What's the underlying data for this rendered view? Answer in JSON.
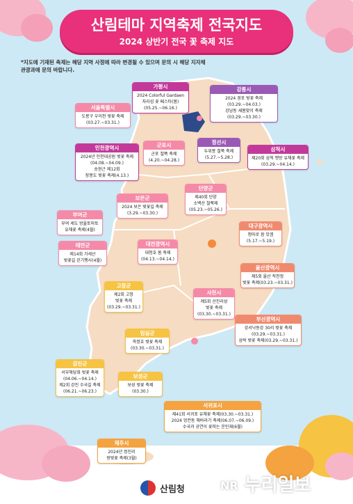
{
  "header": {
    "title": "산림테마 지역축제 전국지도",
    "subtitle": "2024 상반기 전국 꽃 축제 지도"
  },
  "note": "*지도에 기재된 축제는 해당 지역 사정에 따라 변경될 수 있으며 문의 시 해당 지자체 관광과에 문의 바랍니다.",
  "colors": {
    "title_bg": "#e8317a",
    "map_land": "#f6dcc2",
    "sea": "#cde9f5",
    "pink": "#f58aa8",
    "magenta": "#c2399a",
    "purple": "#9b59b6",
    "orange": "#f4a340",
    "coral": "#f08a6e",
    "yellow": "#f6c343"
  },
  "festivals": [
    {
      "region": "가평시",
      "lines": [
        "2024 Colorful Gardaen",
        "자라섬 꽃 페스타(봄)",
        "(05.25.~06.16.)"
      ]
    },
    {
      "region": "강릉시",
      "lines": [
        "2024 경포 벚꽃 축제",
        "(03.29.~04.03.)",
        "강남동 새봄맞이 축제",
        "(03.29.~03.30.)"
      ]
    },
    {
      "region": "서울특별시",
      "lines": [
        "도봉구 우이천 벚꽃 축제",
        "(03.27.~03.31.)"
      ]
    },
    {
      "region": "인천광역시",
      "lines": [
        "2024년 인천대공원 벚꽃 축제",
        "(04.08.~04.09.)",
        "송현근 제12회",
        "장봉도 벚꽃 축제(4.13.)"
      ]
    },
    {
      "region": "군포시",
      "lines": [
        "군포 철쭉 축제",
        "(4.20.~04.28.)"
      ]
    },
    {
      "region": "정선시",
      "lines": [
        "두위봉 철쭉 축제",
        "(5.27.~5.28.)"
      ]
    },
    {
      "region": "삼척시",
      "lines": [
        "제20회 삼척 맹방 유채꽃 축제",
        "(03.29.~04.14.)"
      ]
    },
    {
      "region": "단양군",
      "lines": [
        "제40회 단양",
        "소백산 철쭉제",
        "(05.23.~05.26.)"
      ]
    },
    {
      "region": "보은군",
      "lines": [
        "2024 보은 벚꽃길 축제",
        "(3.29.~03.30.)"
      ]
    },
    {
      "region": "부여군",
      "lines": [
        "부여 세도 방울토마토",
        "유채꽃 축제(4월)"
      ]
    },
    {
      "region": "대구광역시",
      "lines": [
        "청마로 팜 뮤엠",
        "(5.17.~5.19.)"
      ]
    },
    {
      "region": "태안군",
      "lines": [
        "제14회 가세산",
        "벚꽃길 걷기행사(4월)"
      ]
    },
    {
      "region": "대전광역시",
      "lines": [
        "대청호 봄 축제",
        "(04.13.~04.14.)"
      ]
    },
    {
      "region": "울산광역시",
      "lines": [
        "제5회 울산 작천정",
        "벚꽃 축제(03.23.~03.31.)"
      ]
    },
    {
      "region": "고창군",
      "lines": [
        "제2회 고창",
        "벚꽃 축제",
        "(03.29.~03.31.)"
      ]
    },
    {
      "region": "사천시",
      "lines": [
        "제5회 선진리성",
        "벚꽃 축제",
        "(03.30.~03.31.)"
      ]
    },
    {
      "region": "부산광역시",
      "lines": [
        "강서낙동강 30리 벚꽃 축제",
        "(03.29.~03.31.)",
        "삼락 벚꽃 축제(03.29.~03.31.)"
      ]
    },
    {
      "region": "임실군",
      "lines": [
        "옥정호 벚꽃 축제",
        "(03.30.~03.31.)"
      ]
    },
    {
      "region": "강진군",
      "lines": [
        "서부해당화 벚꽃 축제",
        "(04.06.~04.14.)",
        "제2회 강진 수국길 축제",
        "(06.21.~06.23.)"
      ]
    },
    {
      "region": "보성군",
      "lines": [
        "보성 벚꽃 축제",
        "(03.30.)"
      ]
    },
    {
      "region": "서귀포시",
      "lines": [
        "제41회 서귀포 유채꽃 축제(03.30.~03.31.)",
        "2024 엉컨동 해바라기 축제(06.07.~06.09.)",
        "수국과 공연이 꽃피는 운인재(6월)"
      ]
    },
    {
      "region": "제주시",
      "lines": [
        "2024년 정진리",
        "왕벚꽃 축제(3월)"
      ]
    }
  ],
  "footer": {
    "agency": "산림청",
    "watermark": "누리일보",
    "watermark_badge": "NR"
  }
}
